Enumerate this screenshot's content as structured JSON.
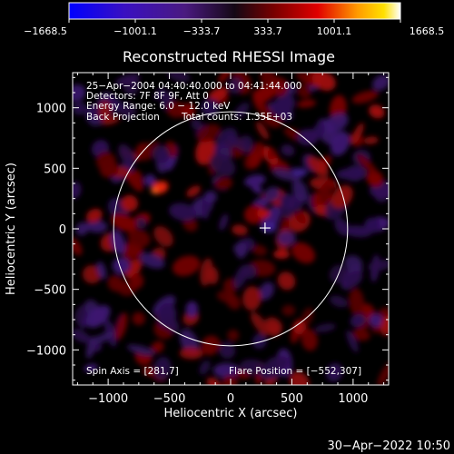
{
  "colorbar": {
    "tick_labels": [
      "−1668.5",
      "−1001.1",
      "−333.7",
      "333.7",
      "1001.1",
      "1668.5"
    ],
    "range": [
      -1668.5,
      1668.5
    ]
  },
  "plot": {
    "title": "Reconstructed RHESSI Image",
    "xlabel": "Heliocentric X (arcsec)",
    "ylabel": "Heliocentric Y (arcsec)",
    "x_ticks": [
      {
        "value": -1000,
        "label": "−1000"
      },
      {
        "value": -500,
        "label": "−500"
      },
      {
        "value": 0,
        "label": "0"
      },
      {
        "value": 500,
        "label": "500"
      },
      {
        "value": 1000,
        "label": "1000"
      }
    ],
    "y_ticks": [
      {
        "value": 1000,
        "label": "1000"
      },
      {
        "value": 500,
        "label": "500"
      },
      {
        "value": 0,
        "label": "0"
      },
      {
        "value": -500,
        "label": "−500"
      },
      {
        "value": -1000,
        "label": "−1000"
      }
    ],
    "xlim": [
      -1290,
      1290
    ],
    "ylim": [
      -1290,
      1290
    ],
    "solar_radius": 955,
    "crosshair": [
      281,
      7
    ]
  },
  "info": {
    "line1": "25−Apr−2004 04:40:40.000 to 04:41:44.000",
    "line2": "Detectors: 7F 8F 9F, Att 0",
    "line3": "Energy Range: 6.0 − 12.0 keV",
    "line4a": "Back Projection",
    "line4b": "Total counts: 1.35E+03",
    "spin_axis": "Spin Axis = [281,7]",
    "flare_position": "Flare Position = [−552,307]"
  },
  "footer": {
    "timestamp": "30−Apr−2022 10:50"
  }
}
